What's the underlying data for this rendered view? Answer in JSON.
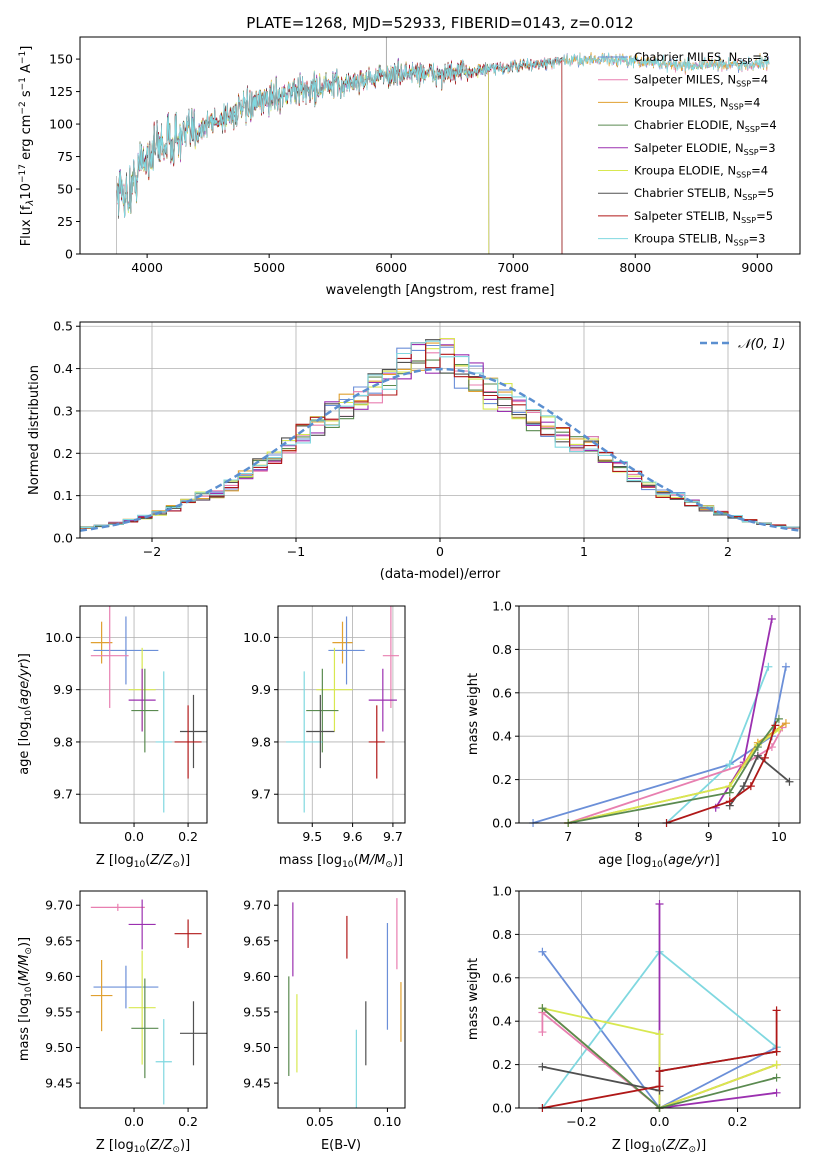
{
  "title": "PLATE=1268, MJD=52933, FIBERID=0143, z=0.012",
  "colors": {
    "chabrier_miles": "#6b8fd8",
    "salpeter_miles": "#e87fb0",
    "kroupa_miles": "#e0a030",
    "chabrier_elodie": "#5a8a50",
    "salpeter_elodie": "#9b30b0",
    "kroupa_elodie": "#d8e850",
    "chabrier_stelib": "#505050",
    "salpeter_stelib": "#b01818",
    "kroupa_stelib": "#80d8e0"
  },
  "legend_spectrum": [
    {
      "model": "Chabrier MILES",
      "nssp": "3",
      "color": "#6b8fd8"
    },
    {
      "model": "Salpeter MILES",
      "nssp": "4",
      "color": "#e87fb0"
    },
    {
      "model": "Kroupa MILES",
      "nssp": "4",
      "color": "#e0a030"
    },
    {
      "model": "Chabrier ELODIE",
      "nssp": "4",
      "color": "#5a8a50"
    },
    {
      "model": "Salpeter ELODIE",
      "nssp": "3",
      "color": "#9b30b0"
    },
    {
      "model": "Kroupa ELODIE",
      "nssp": "4",
      "color": "#d8e850"
    },
    {
      "model": "Chabrier STELIB",
      "nssp": "5",
      "color": "#505050"
    },
    {
      "model": "Salpeter STELIB",
      "nssp": "5",
      "color": "#b01818"
    },
    {
      "model": "Kroupa STELIB",
      "nssp": "3",
      "color": "#80d8e0"
    }
  ],
  "legend_hist": {
    "label": "𝒩(0, 1)",
    "color": "#5b8fd0"
  },
  "chart_data": [
    {
      "id": "spectrum",
      "type": "line",
      "xlabel": "wavelength [Angstrom, rest frame]",
      "ylabel": "Flux [f_λ 10^-17 erg cm^-2 s^-1 A^-1]",
      "xlim": [
        3450,
        9350
      ],
      "ylim": [
        0,
        167
      ],
      "xticks": [
        4000,
        5000,
        6000,
        7000,
        8000,
        9000
      ],
      "yticks": [
        0,
        25,
        50,
        75,
        100,
        125,
        150
      ],
      "grid": false,
      "legend": "top-right",
      "continuum": {
        "x": [
          3750,
          3850,
          3950,
          4100,
          4300,
          4500,
          4700,
          4900,
          5000,
          5200,
          5400,
          5600,
          5800,
          6000,
          6200,
          6400,
          6600,
          6800,
          7000,
          7200,
          7400,
          7600,
          7800,
          8000,
          8200,
          8400,
          8600,
          8800,
          9000,
          9100
        ],
        "y": [
          50,
          45,
          70,
          85,
          90,
          100,
          108,
          115,
          120,
          125,
          128,
          130,
          135,
          138,
          140,
          138,
          140,
          142,
          144,
          146,
          148,
          150,
          150,
          148,
          147,
          145,
          146,
          146,
          146,
          148
        ]
      }
    },
    {
      "id": "residual_histogram",
      "type": "histogram",
      "xlabel": "(data-model)/error",
      "ylabel": "Normed distribution",
      "xlim": [
        -2.5,
        2.5
      ],
      "ylim": [
        0,
        0.51
      ],
      "xticks": [
        -2,
        -1,
        0,
        1,
        2
      ],
      "yticks": [
        0.0,
        0.1,
        0.2,
        0.3,
        0.4,
        0.5
      ],
      "grid": true,
      "legend": "top-right",
      "bin_width": 0.1,
      "reference_curve": "normal(0,1)"
    },
    {
      "id": "age_vs_z",
      "type": "scatter",
      "xlabel": "Z [log10(Z/Z⊙)]",
      "ylabel": "age [log10(age/yr)]",
      "xlim": [
        -0.2,
        0.27
      ],
      "ylim": [
        9.645,
        10.06
      ],
      "xticks": [
        0.0,
        0.2
      ],
      "yticks": [
        9.7,
        9.8,
        9.9,
        10.0
      ],
      "grid": true,
      "points": [
        {
          "color": "#e0a030",
          "x": -0.12,
          "y": 9.99,
          "xerr": 0.04,
          "yerr": 0.04
        },
        {
          "color": "#6b8fd8",
          "x": -0.03,
          "y": 9.975,
          "xerr": 0.12,
          "yerr": 0.065
        },
        {
          "color": "#e87fb0",
          "x": -0.09,
          "y": 9.965,
          "xerr": 0.07,
          "yerr": 0.1
        },
        {
          "color": "#d8e850",
          "x": 0.03,
          "y": 9.9,
          "xerr": 0.05,
          "yerr": 0.08
        },
        {
          "color": "#9b30b0",
          "x": 0.03,
          "y": 9.88,
          "xerr": 0.05,
          "yerr": 0.06
        },
        {
          "color": "#5a8a50",
          "x": 0.04,
          "y": 9.86,
          "xerr": 0.05,
          "yerr": 0.08
        },
        {
          "color": "#80d8e0",
          "x": 0.11,
          "y": 9.8,
          "xerr": 0.03,
          "yerr": 0.135
        },
        {
          "color": "#505050",
          "x": 0.22,
          "y": 9.82,
          "xerr": 0.05,
          "yerr": 0.07
        },
        {
          "color": "#b01818",
          "x": 0.2,
          "y": 9.8,
          "xerr": 0.05,
          "yerr": 0.07
        }
      ]
    },
    {
      "id": "age_vs_mass",
      "type": "scatter",
      "xlabel": "mass [log10(M/M⊙)]",
      "ylabel": "",
      "xlim": [
        9.415,
        9.73
      ],
      "ylim": [
        9.645,
        10.06
      ],
      "xticks": [
        9.5,
        9.6,
        9.7
      ],
      "yticks": [
        9.7,
        9.8,
        9.9,
        10.0
      ],
      "grid": true,
      "points": [
        {
          "color": "#e0a030",
          "x": 9.575,
          "y": 9.99,
          "xerr": 0.025,
          "yerr": 0.04
        },
        {
          "color": "#6b8fd8",
          "x": 9.585,
          "y": 9.975,
          "xerr": 0.045,
          "yerr": 0.065
        },
        {
          "color": "#e87fb0",
          "x": 9.695,
          "y": 9.965,
          "xerr": 0.02,
          "yerr": 0.1
        },
        {
          "color": "#d8e850",
          "x": 9.555,
          "y": 9.9,
          "xerr": 0.045,
          "yerr": 0.08
        },
        {
          "color": "#9b30b0",
          "x": 9.675,
          "y": 9.88,
          "xerr": 0.035,
          "yerr": 0.06
        },
        {
          "color": "#5a8a50",
          "x": 9.525,
          "y": 9.86,
          "xerr": 0.04,
          "yerr": 0.08
        },
        {
          "color": "#80d8e0",
          "x": 9.48,
          "y": 9.8,
          "xerr": 0.045,
          "yerr": 0.135
        },
        {
          "color": "#505050",
          "x": 9.52,
          "y": 9.82,
          "xerr": 0.035,
          "yerr": 0.07
        },
        {
          "color": "#b01818",
          "x": 9.66,
          "y": 9.8,
          "xerr": 0.02,
          "yerr": 0.07
        }
      ]
    },
    {
      "id": "massweight_vs_age",
      "type": "line",
      "xlabel": "age [log10(age/yr)]",
      "ylabel": "mass weight",
      "xlim": [
        6.3,
        10.3
      ],
      "ylim": [
        0,
        1.0
      ],
      "xticks": [
        7,
        8,
        9,
        10
      ],
      "yticks": [
        0.0,
        0.2,
        0.4,
        0.6,
        0.8,
        1.0
      ],
      "grid": true,
      "series": [
        {
          "color": "#6b8fd8",
          "x": [
            6.5,
            9.3,
            9.9,
            10.1
          ],
          "y": [
            0.0,
            0.27,
            0.4,
            0.72
          ]
        },
        {
          "color": "#80d8e0",
          "x": [
            8.4,
            9.3,
            9.85
          ],
          "y": [
            0.0,
            0.27,
            0.72
          ]
        },
        {
          "color": "#9b30b0",
          "x": [
            9.1,
            9.5,
            9.9
          ],
          "y": [
            0.07,
            0.28,
            0.94
          ]
        },
        {
          "color": "#e87fb0",
          "x": [
            7.0,
            9.5,
            9.9,
            10.05
          ],
          "y": [
            0.0,
            0.27,
            0.35,
            0.44
          ]
        },
        {
          "color": "#e0a030",
          "x": [
            7.0,
            9.3,
            9.7,
            10.1
          ],
          "y": [
            0.0,
            0.17,
            0.37,
            0.46
          ]
        },
        {
          "color": "#d8e850",
          "x": [
            7.0,
            9.3,
            9.7,
            10.0
          ],
          "y": [
            0.0,
            0.17,
            0.36,
            0.43
          ]
        },
        {
          "color": "#5a8a50",
          "x": [
            7.0,
            9.3,
            9.7,
            10.0
          ],
          "y": [
            0.0,
            0.14,
            0.35,
            0.48
          ]
        },
        {
          "color": "#505050",
          "x": [
            9.3,
            9.5,
            9.7,
            10.15
          ],
          "y": [
            0.08,
            0.17,
            0.31,
            0.19
          ]
        },
        {
          "color": "#b01818",
          "x": [
            8.4,
            9.3,
            9.6,
            9.8,
            9.95
          ],
          "y": [
            0.0,
            0.1,
            0.17,
            0.3,
            0.45
          ]
        }
      ]
    },
    {
      "id": "mass_vs_z",
      "type": "scatter",
      "xlabel": "Z [log10(Z/Z⊙)]",
      "ylabel": "mass [log10(M/M⊙)]",
      "xlim": [
        -0.2,
        0.27
      ],
      "ylim": [
        9.415,
        9.72
      ],
      "xticks": [
        0.0,
        0.2
      ],
      "yticks": [
        9.45,
        9.5,
        9.55,
        9.6,
        9.65,
        9.7
      ],
      "grid": false,
      "points": [
        {
          "color": "#e87fb0",
          "x": -0.06,
          "y": 9.697,
          "xerr": 0.1,
          "yerr": 0.005
        },
        {
          "color": "#9b30b0",
          "x": 0.03,
          "y": 9.673,
          "xerr": 0.05,
          "yerr": 0.035
        },
        {
          "color": "#b01818",
          "x": 0.2,
          "y": 9.66,
          "xerr": 0.05,
          "yerr": 0.02
        },
        {
          "color": "#6b8fd8",
          "x": -0.03,
          "y": 9.585,
          "xerr": 0.12,
          "yerr": 0.03
        },
        {
          "color": "#e0a030",
          "x": -0.12,
          "y": 9.573,
          "xerr": 0.04,
          "yerr": 0.05
        },
        {
          "color": "#d8e850",
          "x": 0.03,
          "y": 9.556,
          "xerr": 0.05,
          "yerr": 0.08
        },
        {
          "color": "#5a8a50",
          "x": 0.04,
          "y": 9.527,
          "xerr": 0.05,
          "yerr": 0.07
        },
        {
          "color": "#505050",
          "x": 0.22,
          "y": 9.52,
          "xerr": 0.05,
          "yerr": 0.045
        },
        {
          "color": "#80d8e0",
          "x": 0.11,
          "y": 9.48,
          "xerr": 0.03,
          "yerr": 0.06
        }
      ]
    },
    {
      "id": "mass_vs_ebv",
      "type": "scatter",
      "xlabel": "E(B-V)",
      "ylabel": "",
      "xlim": [
        0.019,
        0.113
      ],
      "ylim": [
        9.415,
        9.72
      ],
      "xticks": [
        0.05,
        0.1
      ],
      "yticks": [
        9.45,
        9.5,
        9.55,
        9.6,
        9.65,
        9.7
      ],
      "grid": false,
      "points": [
        {
          "color": "#9b30b0",
          "x": 0.03,
          "y": 9.652,
          "xerr": 0,
          "yerr": 0.052
        },
        {
          "color": "#e87fb0",
          "x": 0.107,
          "y": 9.66,
          "xerr": 0,
          "yerr": 0.05
        },
        {
          "color": "#b01818",
          "x": 0.07,
          "y": 9.655,
          "xerr": 0,
          "yerr": 0.03
        },
        {
          "color": "#6b8fd8",
          "x": 0.1,
          "y": 9.6,
          "xerr": 0,
          "yerr": 0.075
        },
        {
          "color": "#e0a030",
          "x": 0.11,
          "y": 9.55,
          "xerr": 0,
          "yerr": 0.042
        },
        {
          "color": "#5a8a50",
          "x": 0.027,
          "y": 9.53,
          "xerr": 0,
          "yerr": 0.07
        },
        {
          "color": "#d8e850",
          "x": 0.033,
          "y": 9.52,
          "xerr": 0,
          "yerr": 0.055
        },
        {
          "color": "#505050",
          "x": 0.084,
          "y": 9.52,
          "xerr": 0,
          "yerr": 0.045
        },
        {
          "color": "#80d8e0",
          "x": 0.077,
          "y": 9.47,
          "xerr": 0,
          "yerr": 0.055
        }
      ]
    },
    {
      "id": "massweight_vs_z",
      "type": "line",
      "xlabel": "Z [log10(Z/Z⊙)]",
      "ylabel": "mass weight",
      "xlim": [
        -0.36,
        0.36
      ],
      "ylim": [
        0,
        1.0
      ],
      "xticks": [
        -0.2,
        0.0,
        0.2
      ],
      "yticks": [
        0.0,
        0.2,
        0.4,
        0.6,
        0.8,
        1.0
      ],
      "grid": true,
      "series": [
        {
          "color": "#6b8fd8",
          "x": [
            -0.3,
            0.0,
            0.0,
            0.3
          ],
          "y": [
            0.72,
            0.0,
            0.0,
            0.28
          ]
        },
        {
          "color": "#80d8e0",
          "x": [
            -0.3,
            0.0,
            0.3
          ],
          "y": [
            0.0,
            0.72,
            0.28
          ]
        },
        {
          "color": "#9b30b0",
          "x": [
            0.0,
            0.0,
            0.3
          ],
          "y": [
            0.94,
            0.0,
            0.07
          ]
        },
        {
          "color": "#e87fb0",
          "x": [
            -0.3,
            -0.3,
            0.0,
            0.3
          ],
          "y": [
            0.35,
            0.44,
            0.0,
            0.2
          ]
        },
        {
          "color": "#e0a030",
          "x": [
            -0.3,
            0.0,
            0.3
          ],
          "y": [
            0.46,
            0.0,
            0.2
          ]
        },
        {
          "color": "#d8e850",
          "x": [
            -0.3,
            0.0,
            0.0,
            0.3
          ],
          "y": [
            0.46,
            0.34,
            0.0,
            0.2
          ]
        },
        {
          "color": "#5a8a50",
          "x": [
            -0.3,
            0.0,
            0.0,
            0.3
          ],
          "y": [
            0.46,
            0.0,
            0.0,
            0.14
          ]
        },
        {
          "color": "#505050",
          "x": [
            -0.3,
            0.0,
            0.0,
            0.0,
            0.3
          ],
          "y": [
            0.19,
            0.08,
            0.17,
            0.17,
            0.26
          ]
        },
        {
          "color": "#b01818",
          "x": [
            -0.3,
            0.0,
            0.0,
            0.3,
            0.3
          ],
          "y": [
            0.0,
            0.1,
            0.17,
            0.26,
            0.45
          ]
        }
      ]
    }
  ]
}
